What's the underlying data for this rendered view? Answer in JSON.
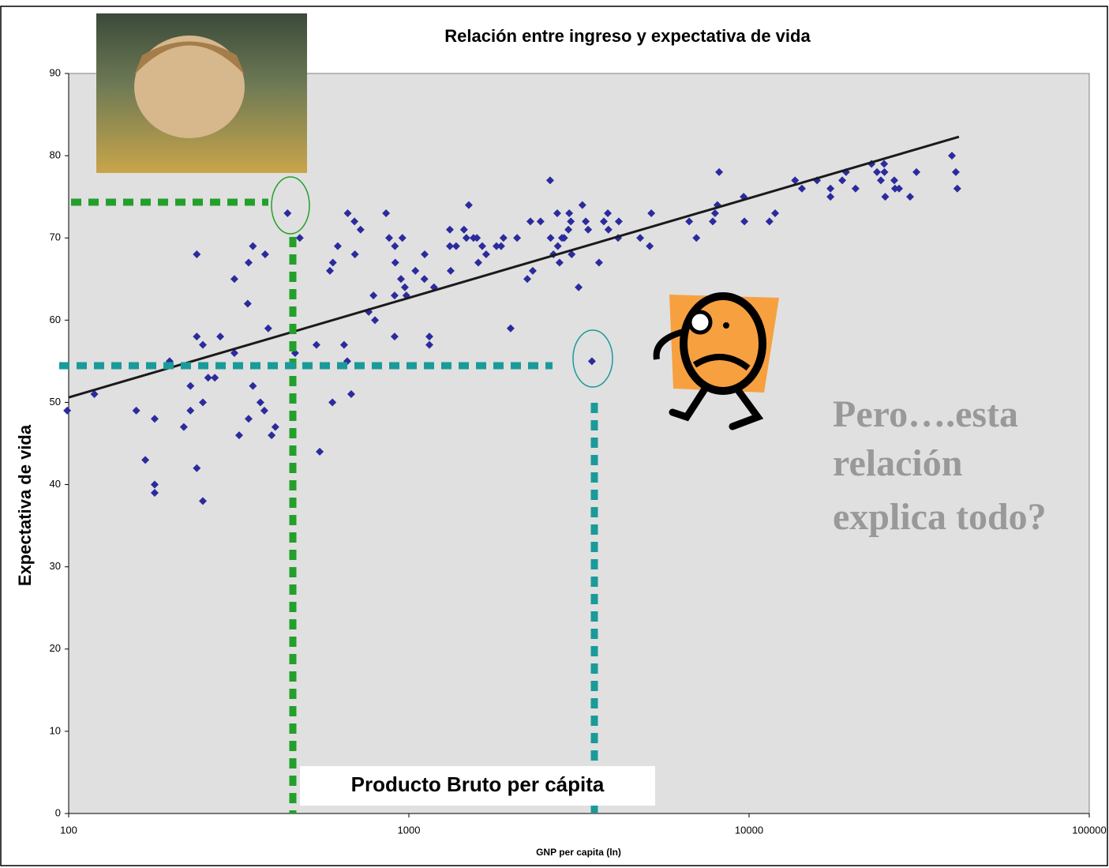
{
  "chart_data": {
    "type": "scatter",
    "title": "Relación entre ingreso y expectativa de vida",
    "x_label": "GNP per capita (ln)",
    "y_label": "Expectativa de vida",
    "xscale": "log",
    "xlim": [
      100,
      100000
    ],
    "ylim": [
      0,
      90
    ],
    "xticks": [
      100,
      1000,
      10000,
      100000
    ],
    "yticks": [
      0,
      10,
      20,
      30,
      40,
      50,
      60,
      70,
      80,
      90
    ],
    "grid": false,
    "points": {
      "color": "#2b2b9e",
      "x": [
        99,
        119,
        158,
        168,
        179,
        179,
        179,
        198,
        218,
        228,
        228,
        238,
        238,
        238,
        248,
        248,
        248,
        257,
        269,
        279,
        307,
        307,
        317,
        336,
        338,
        338,
        348,
        348,
        366,
        376,
        378,
        386,
        395,
        405,
        440,
        463,
        478,
        535,
        547,
        586,
        596,
        598,
        618,
        645,
        659,
        661,
        677,
        692,
        694,
        721,
        762,
        787,
        795,
        857,
        875,
        908,
        908,
        910,
        912,
        957,
        948,
        973,
        983,
        1045,
        1113,
        1111,
        1149,
        1149,
        1185,
        1320,
        1327,
        1320,
        1377,
        1452,
        1476,
        1500,
        1549,
        1585,
        1600,
        1643,
        1687,
        1809,
        1867,
        1897,
        1991,
        2080,
        2229,
        2276,
        2313,
        2438,
        2601,
        2610,
        2660,
        2730,
        2740,
        2773,
        2818,
        2860,
        2944,
        2960,
        2993,
        3010,
        3155,
        3236,
        3311,
        3365,
        3452,
        3622,
        3741,
        3844,
        3860,
        4121,
        4140,
        4786,
        5105,
        5160,
        6668,
        7000,
        7823,
        7943,
        8070,
        8167,
        9640,
        9690,
        11480,
        11930,
        13650,
        14300,
        15840,
        17350,
        17350,
        18790,
        19280,
        20560,
        22910,
        23770,
        24400,
        24950,
        25130,
        25000,
        26720,
        26850,
        27600,
        29740,
        31040,
        39470,
        40530,
        40930
      ],
      "y": [
        49,
        51,
        49,
        43,
        48,
        40,
        39,
        55,
        47,
        52,
        49,
        68,
        58,
        42,
        57,
        50,
        38,
        53,
        53,
        58,
        65,
        56,
        46,
        62,
        67,
        48,
        69,
        52,
        50,
        49,
        68,
        59,
        46,
        47,
        73,
        56,
        70,
        57,
        44,
        66,
        50,
        67,
        69,
        57,
        55,
        73,
        51,
        72,
        68,
        71,
        61,
        63,
        60,
        73,
        70,
        63,
        58,
        69,
        67,
        70,
        65,
        64,
        63,
        66,
        68,
        65,
        58,
        57,
        64,
        71,
        66,
        69,
        69,
        71,
        70,
        74,
        70,
        70,
        67,
        69,
        68,
        69,
        69,
        70,
        59,
        70,
        65,
        72,
        66,
        72,
        77,
        70,
        68,
        73,
        69,
        67,
        70,
        70,
        71,
        73,
        72,
        68,
        64,
        74,
        72,
        71,
        55,
        67,
        72,
        73,
        71,
        70,
        72,
        70,
        69,
        73,
        72,
        70,
        72,
        73,
        74,
        78,
        75,
        72,
        72,
        73,
        77,
        76,
        77,
        75,
        76,
        77,
        78,
        76,
        79,
        78,
        77,
        79,
        75,
        78,
        77,
        76,
        76,
        75,
        78,
        80,
        78,
        76
      ]
    },
    "trendline": {
      "color": "#1a1a1a",
      "x": [
        100,
        41400
      ],
      "y": [
        50.6,
        82.3
      ]
    },
    "annotation": "Producto Bruto per cápita",
    "callout": [
      "Pero….esta",
      "relación",
      "explica todo?"
    ]
  }
}
